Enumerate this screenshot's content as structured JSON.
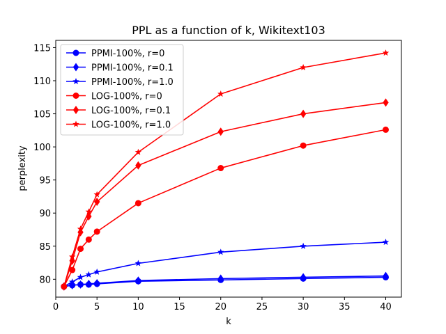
{
  "chart_data": {
    "type": "line",
    "title": "PPL as a function of k, Wikitext103",
    "xlabel": "k",
    "ylabel": "perplexity",
    "xlim": [
      0,
      41.9
    ],
    "ylim": [
      77.3,
      116.1
    ],
    "xticks": [
      0,
      5,
      10,
      15,
      20,
      25,
      30,
      35,
      40
    ],
    "yticks": [
      80,
      85,
      90,
      95,
      100,
      105,
      110,
      115
    ],
    "legend_position": "top-left",
    "x": [
      1,
      2,
      3,
      4,
      5,
      10,
      20,
      30,
      40
    ],
    "series": [
      {
        "name": "PPMI-100%, r=0",
        "color": "#0000ff",
        "marker": "circle",
        "values": [
          78.9,
          79.1,
          79.2,
          79.2,
          79.3,
          79.7,
          79.9,
          80.1,
          80.3
        ]
      },
      {
        "name": "PPMI-100%, r=0.1",
        "color": "#0000ff",
        "marker": "diamond",
        "values": [
          78.9,
          79.1,
          79.2,
          79.3,
          79.4,
          79.8,
          80.1,
          80.3,
          80.5
        ]
      },
      {
        "name": "PPMI-100%, r=1.0",
        "color": "#0000ff",
        "marker": "star",
        "values": [
          78.9,
          79.6,
          80.3,
          80.7,
          81.1,
          82.4,
          84.1,
          85.0,
          85.6
        ]
      },
      {
        "name": "LOG-100%, r=0",
        "color": "#ff0000",
        "marker": "circle",
        "values": [
          78.9,
          81.4,
          84.6,
          86.0,
          87.2,
          91.5,
          96.8,
          100.2,
          102.6
        ]
      },
      {
        "name": "LOG-100%, r=0.1",
        "color": "#ff0000",
        "marker": "diamond",
        "values": [
          78.9,
          82.8,
          87.1,
          89.5,
          91.7,
          97.2,
          102.3,
          105.0,
          106.7
        ]
      },
      {
        "name": "LOG-100%, r=1.0",
        "color": "#ff0000",
        "marker": "star",
        "values": [
          78.9,
          83.4,
          87.6,
          90.2,
          92.8,
          99.2,
          108.0,
          112.0,
          114.2
        ]
      }
    ]
  }
}
